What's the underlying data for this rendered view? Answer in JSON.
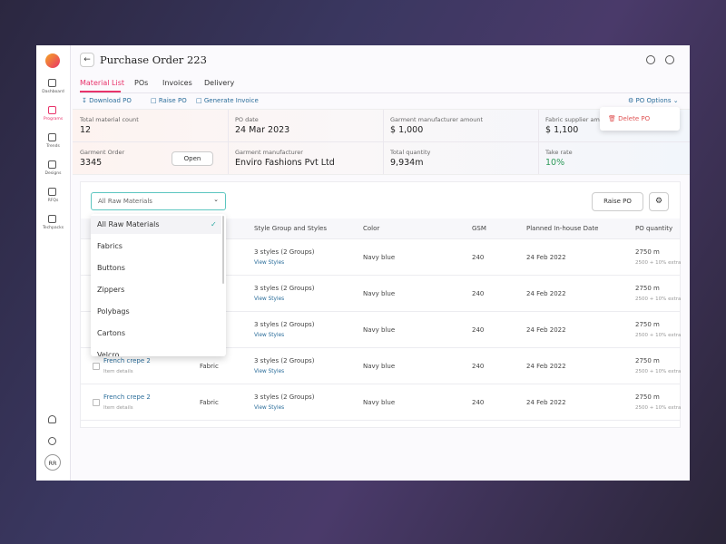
{
  "sidebar": {
    "items": [
      "Dashboard",
      "Programs",
      "Trends",
      "Designs",
      "RFQs",
      "Techpacks"
    ],
    "avatar": "RR"
  },
  "header": {
    "title": "Purchase Order 223"
  },
  "tabs": [
    "Material List",
    "POs",
    "Invoices",
    "Delivery"
  ],
  "actions": {
    "download": "Download PO",
    "raise": "Raise PO",
    "invoice": "Generate Invoice",
    "options": "PO Options"
  },
  "options_menu": {
    "delete": "Delete PO"
  },
  "summary": [
    [
      {
        "label": "Total material count",
        "value": "12"
      },
      {
        "label": "PO date",
        "value": "24 Mar 2023"
      },
      {
        "label": "Garment manufacturer amount",
        "value": "$ 1,000"
      },
      {
        "label": "Fabric supplier amo",
        "value": "$ 1,100"
      }
    ],
    [
      {
        "label": "Garment Order",
        "value": "3345",
        "button": "Open"
      },
      {
        "label": "Garment manufacturer",
        "value": "Enviro Fashions Pvt Ltd"
      },
      {
        "label": "Total quantity",
        "value": "9,934m"
      },
      {
        "label": "Take rate",
        "value": "10%"
      }
    ]
  ],
  "filter": {
    "selected": "All Raw Materials",
    "raise_button": "Raise PO",
    "options": [
      "All Raw Materials",
      "Fabrics",
      "Buttons",
      "Zippers",
      "Polybags",
      "Cartons",
      "Velcro"
    ]
  },
  "table": {
    "headers": [
      "Style Group and Styles",
      "Color",
      "GSM",
      "Planned In-house Date",
      "PO quantity"
    ],
    "rows": [
      {
        "styles": "3 styles (2 Groups)",
        "link": "View Styles",
        "color": "Navy blue",
        "gsm": "240",
        "date": "24 Feb 2022",
        "qty": "2750 m",
        "extra": "2500 + 10% extra"
      },
      {
        "styles": "3 styles (2 Groups)",
        "link": "View Styles",
        "color": "Navy blue",
        "gsm": "240",
        "date": "24 Feb 2022",
        "qty": "2750 m",
        "extra": "2500 + 10% extra"
      },
      {
        "styles": "3 styles (2 Groups)",
        "link": "View Styles",
        "color": "Navy blue",
        "gsm": "240",
        "date": "24 Feb 2022",
        "qty": "2750 m",
        "extra": "2500 + 10% extra"
      },
      {
        "name": "French crepe 2",
        "sub": "Item details",
        "type": "Fabric",
        "styles": "3 styles (2 Groups)",
        "link": "View Styles",
        "color": "Navy blue",
        "gsm": "240",
        "date": "24 Feb 2022",
        "qty": "2750 m",
        "extra": "2500 + 10% extra"
      },
      {
        "name": "French crepe 2",
        "sub": "Item details",
        "type": "Fabric",
        "styles": "3 styles (2 Groups)",
        "link": "View Styles",
        "color": "Navy blue",
        "gsm": "240",
        "date": "24 Feb 2022",
        "qty": "2750 m",
        "extra": "2500 + 10% extra"
      }
    ]
  }
}
